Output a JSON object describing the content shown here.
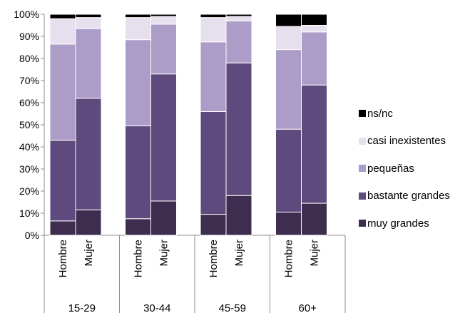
{
  "chart_data": {
    "type": "bar",
    "stacked": true,
    "percent": true,
    "ylim": [
      0,
      100
    ],
    "y_ticks": [
      "0%",
      "10%",
      "20%",
      "30%",
      "40%",
      "50%",
      "60%",
      "70%",
      "80%",
      "90%",
      "100%"
    ],
    "groups": [
      {
        "label": "15-29",
        "bars": [
          {
            "label": "Hombre",
            "values": [
              6.5,
              36.5,
              43.5,
              11.5,
              2.0
            ]
          },
          {
            "label": "Mujer",
            "values": [
              11.5,
              50.5,
              31.5,
              5.0,
              1.5
            ]
          }
        ]
      },
      {
        "label": "30-44",
        "bars": [
          {
            "label": "Hombre",
            "values": [
              7.5,
              42.0,
              39.0,
              10.0,
              1.5
            ]
          },
          {
            "label": "Mujer",
            "values": [
              15.5,
              57.5,
              22.5,
              3.5,
              1.0
            ]
          }
        ]
      },
      {
        "label": "45-59",
        "bars": [
          {
            "label": "Hombre",
            "values": [
              9.5,
              46.5,
              31.5,
              11.0,
              1.5
            ]
          },
          {
            "label": "Mujer",
            "values": [
              18.0,
              60.0,
              19.0,
              2.0,
              1.0
            ]
          }
        ]
      },
      {
        "label": "60+",
        "bars": [
          {
            "label": "Hombre",
            "values": [
              10.5,
              37.5,
              36.0,
              10.5,
              5.5
            ]
          },
          {
            "label": "Mujer",
            "values": [
              14.5,
              53.5,
              24.0,
              3.0,
              5.0
            ]
          }
        ]
      }
    ],
    "series": [
      {
        "name": "muy grandes",
        "color": "#3e2d4f"
      },
      {
        "name": "bastante grandes",
        "color": "#5e4a7c"
      },
      {
        "name": "pequeñas",
        "color": "#ab9cc8"
      },
      {
        "name": "casi inexistentes",
        "color": "#e6e0ee"
      },
      {
        "name": "ns/nc",
        "color": "#000000"
      }
    ],
    "legend_order": [
      "ns/nc",
      "casi inexistentes",
      "pequeñas",
      "bastante grandes",
      "muy grandes"
    ],
    "legend_position": "right",
    "grid": false
  }
}
